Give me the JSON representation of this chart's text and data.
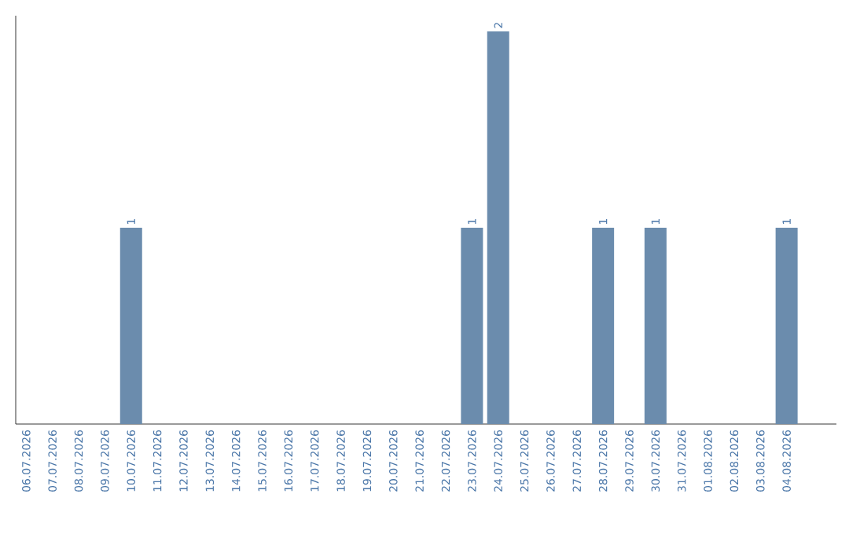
{
  "chart_data": {
    "type": "bar",
    "categories": [
      "06.07.2026",
      "07.07.2026",
      "08.07.2026",
      "09.07.2026",
      "10.07.2026",
      "11.07.2026",
      "12.07.2026",
      "13.07.2026",
      "14.07.2026",
      "15.07.2026",
      "16.07.2026",
      "17.07.2026",
      "18.07.2026",
      "19.07.2026",
      "20.07.2026",
      "21.07.2026",
      "22.07.2026",
      "23.07.2026",
      "24.07.2026",
      "25.07.2026",
      "26.07.2026",
      "27.07.2026",
      "28.07.2026",
      "29.07.2026",
      "30.07.2026",
      "31.07.2026",
      "01.08.2026",
      "02.08.2026",
      "03.08.2026",
      "04.08.2026"
    ],
    "values": [
      0,
      0,
      0,
      0,
      1,
      0,
      0,
      0,
      0,
      0,
      0,
      0,
      0,
      0,
      0,
      0,
      0,
      1,
      2,
      0,
      0,
      0,
      1,
      0,
      1,
      0,
      0,
      0,
      0,
      1
    ],
    "value_labels": [
      null,
      null,
      null,
      null,
      "1",
      null,
      null,
      null,
      null,
      null,
      null,
      null,
      null,
      null,
      null,
      null,
      null,
      "1",
      "2",
      null,
      null,
      null,
      "1",
      null,
      "1",
      null,
      null,
      null,
      null,
      "1"
    ],
    "color": "#6b8cad",
    "tick_labels": "x"
  }
}
